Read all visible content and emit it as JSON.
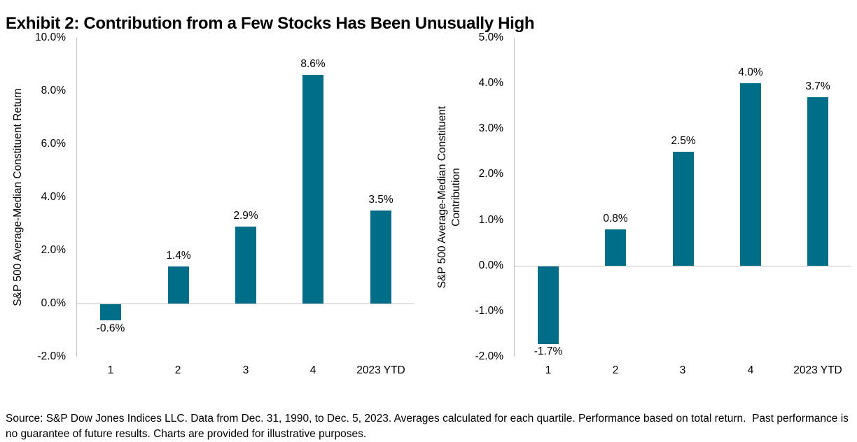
{
  "title": "Exhibit 2: Contribution from a Few Stocks Has Been Unusually High",
  "footer": "Source: S&P Dow Jones Indices LLC. Data from Dec. 31, 1990, to Dec. 5, 2023. Averages calculated for each quartile. Performance based on total return.  Past performance is no guarantee of future results. Charts are provided for illustrative purposes.",
  "colors": {
    "bar": "#006E87",
    "axis": "#C3C3C3",
    "text": "#000000"
  },
  "chart_data": [
    {
      "type": "bar",
      "name": "average-median-constituent-return",
      "ylabel": "S&P 500 Average-Median Constituent Return",
      "ylabel_lines": [
        "S&P 500 Average-Median Constituent Return"
      ],
      "categories": [
        "1",
        "2",
        "3",
        "4",
        "2023 YTD"
      ],
      "values": [
        -0.6,
        1.4,
        2.9,
        8.6,
        3.5
      ],
      "bar_labels": [
        "-0.6%",
        "1.4%",
        "2.9%",
        "8.6%",
        "3.5%"
      ],
      "ylim": [
        -2,
        10
      ],
      "ytick_values": [
        10,
        8,
        6,
        4,
        2,
        0,
        -2
      ],
      "ytick_labels": [
        "10.0%",
        "8.0%",
        "6.0%",
        "4.0%",
        "2.0%",
        "0.0%",
        "-2.0%"
      ],
      "grid": false,
      "legend": false
    },
    {
      "type": "bar",
      "name": "average-median-constituent-contribution",
      "ylabel": "S&P 500 Average-Median Constituent Contribution",
      "ylabel_lines": [
        "S&P 500 Average-Median Constituent",
        "Contribution"
      ],
      "categories": [
        "1",
        "2",
        "3",
        "4",
        "2023 YTD"
      ],
      "values": [
        -1.7,
        0.8,
        2.5,
        4.0,
        3.7
      ],
      "bar_labels": [
        "-1.7%",
        "0.8%",
        "2.5%",
        "4.0%",
        "3.7%"
      ],
      "ylim": [
        -2,
        5
      ],
      "ytick_values": [
        5,
        4,
        3,
        2,
        1,
        0,
        -1,
        -2
      ],
      "ytick_labels": [
        "5.0%",
        "4.0%",
        "3.0%",
        "2.0%",
        "1.0%",
        "0.0%",
        "-1.0%",
        "-2.0%"
      ],
      "grid": false,
      "legend": false
    }
  ]
}
